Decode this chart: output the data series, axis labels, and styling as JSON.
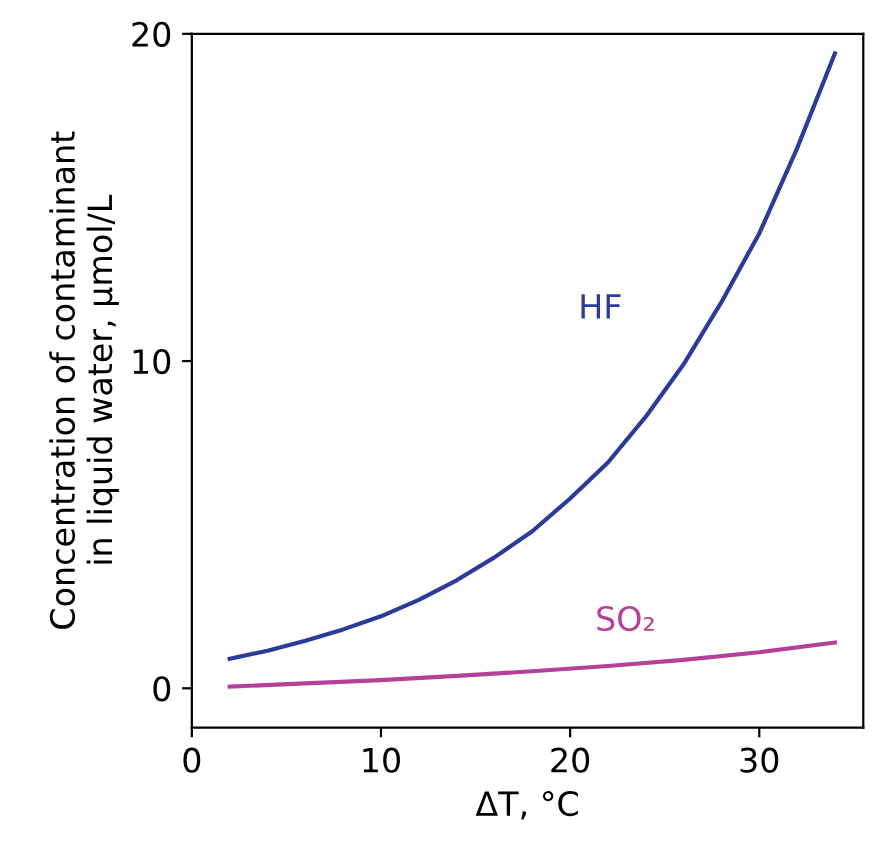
{
  "chart_data": {
    "type": "line",
    "xlabel": "ΔT, °C",
    "ylabel": "Concentration of contaminant\nin liquid water, μmol/L",
    "xlim": [
      0,
      35.5
    ],
    "ylim": [
      -1.2,
      20
    ],
    "xticks": [
      0,
      10,
      20,
      30
    ],
    "yticks": [
      0,
      10,
      20
    ],
    "grid": false,
    "legend": false,
    "marker": "none",
    "line_style": "solid",
    "series": [
      {
        "name": "HF",
        "color": "#2e3a9a",
        "x": [
          2,
          4,
          6,
          8,
          10,
          12,
          14,
          16,
          18,
          20,
          22,
          24,
          26,
          28,
          30,
          32,
          34
        ],
        "values": [
          0.9,
          1.15,
          1.45,
          1.8,
          2.2,
          2.7,
          3.3,
          4.0,
          4.8,
          5.8,
          6.9,
          8.3,
          9.9,
          11.8,
          13.9,
          16.5,
          19.4
        ]
      },
      {
        "name": "SO₂",
        "color": "#b5409a",
        "x": [
          2,
          6,
          10,
          14,
          18,
          22,
          26,
          30,
          34
        ],
        "values": [
          0.05,
          0.15,
          0.25,
          0.38,
          0.52,
          0.68,
          0.87,
          1.1,
          1.4
        ]
      }
    ]
  }
}
